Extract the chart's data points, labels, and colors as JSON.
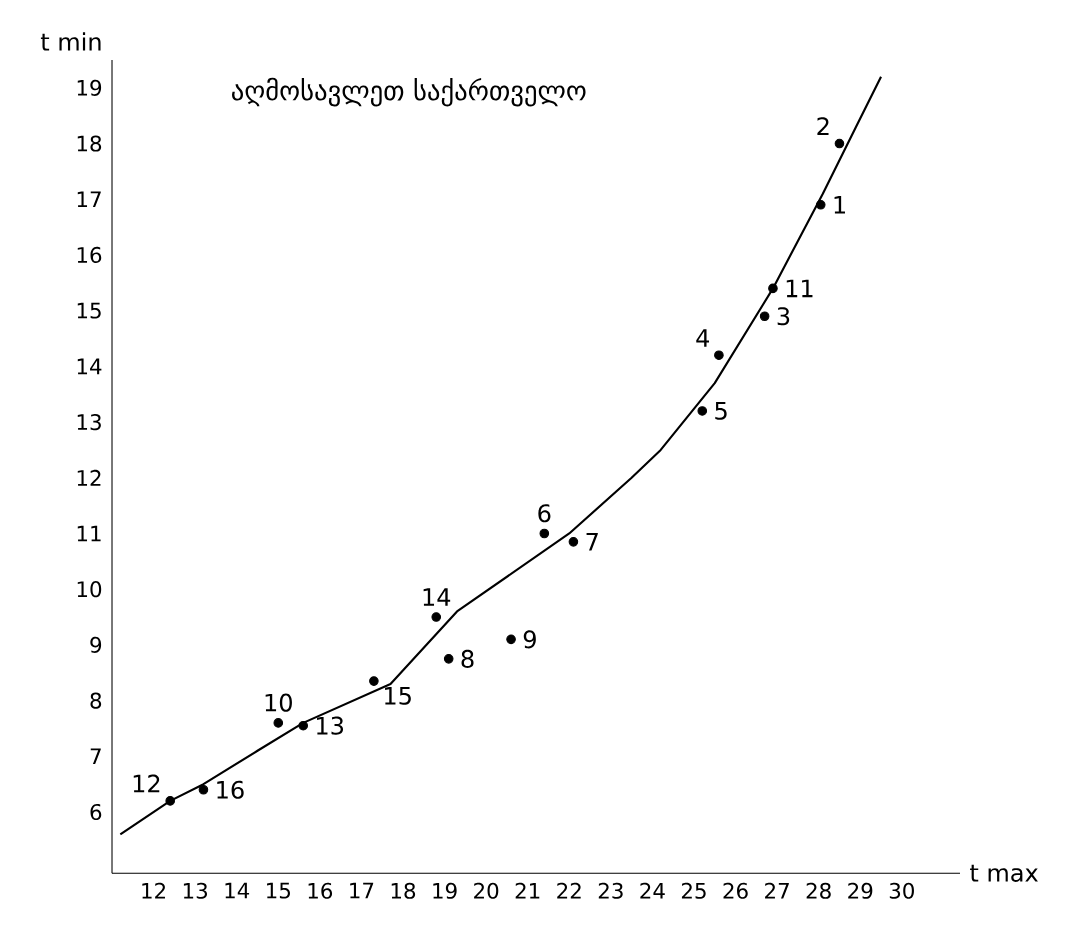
{
  "chart_data": {
    "type": "scatter",
    "title": "აღმოსავლეთ საქართველო",
    "xlabel": "t max",
    "ylabel": "t min",
    "xlim": [
      11,
      31.4
    ],
    "ylim": [
      4.9,
      19.5
    ],
    "xticks": [
      12,
      13,
      14,
      15,
      16,
      17,
      18,
      19,
      20,
      21,
      22,
      23,
      24,
      25,
      26,
      27,
      28,
      29,
      30
    ],
    "yticks": [
      6,
      7,
      8,
      9,
      10,
      11,
      12,
      13,
      14,
      15,
      16,
      17,
      18,
      19
    ],
    "series": [
      {
        "color": "#000000",
        "marker": "circle",
        "x": [
          28.05,
          28.5,
          26.7,
          25.6,
          25.2,
          21.4,
          22.1,
          19.1,
          20.6,
          15.0,
          26.9,
          12.4,
          15.6,
          18.8,
          17.3,
          13.2
        ],
        "values": [
          16.9,
          18.0,
          14.9,
          14.2,
          13.2,
          11.0,
          10.85,
          8.75,
          9.1,
          7.6,
          15.4,
          6.2,
          7.55,
          9.5,
          8.35,
          6.4
        ]
      },
      {
        "type": "line",
        "color": "#000000",
        "line_style": "solid",
        "marker": "none",
        "x": [
          11.2,
          12.4,
          13.2,
          14.5,
          15.6,
          17.7,
          19.3,
          22.0,
          23.5,
          24.2,
          25.5,
          26.9,
          28.1,
          28.9,
          29.5
        ],
        "values": [
          5.6,
          6.2,
          6.5,
          7.1,
          7.6,
          8.3,
          9.6,
          11.0,
          12.0,
          12.5,
          13.7,
          15.4,
          17.1,
          18.3,
          19.2
        ]
      }
    ],
    "annotations": [
      {
        "text": "1",
        "x": 28.05,
        "y": 16.9
      },
      {
        "text": "2",
        "x": 28.5,
        "y": 18.0
      },
      {
        "text": "3",
        "x": 26.7,
        "y": 14.9
      },
      {
        "text": "4",
        "x": 25.6,
        "y": 14.2
      },
      {
        "text": "5",
        "x": 25.2,
        "y": 13.2
      },
      {
        "text": "6",
        "x": 21.4,
        "y": 11.0
      },
      {
        "text": "7",
        "x": 22.1,
        "y": 10.85
      },
      {
        "text": "8",
        "x": 19.1,
        "y": 8.75
      },
      {
        "text": "9",
        "x": 20.6,
        "y": 9.1
      },
      {
        "text": "10",
        "x": 15.0,
        "y": 7.6
      },
      {
        "text": "11",
        "x": 26.9,
        "y": 15.4
      },
      {
        "text": "12",
        "x": 12.4,
        "y": 6.2
      },
      {
        "text": "13",
        "x": 15.6,
        "y": 7.55
      },
      {
        "text": "14",
        "x": 18.8,
        "y": 9.5
      },
      {
        "text": "15",
        "x": 17.3,
        "y": 8.35
      },
      {
        "text": "16",
        "x": 13.2,
        "y": 6.4
      }
    ]
  }
}
